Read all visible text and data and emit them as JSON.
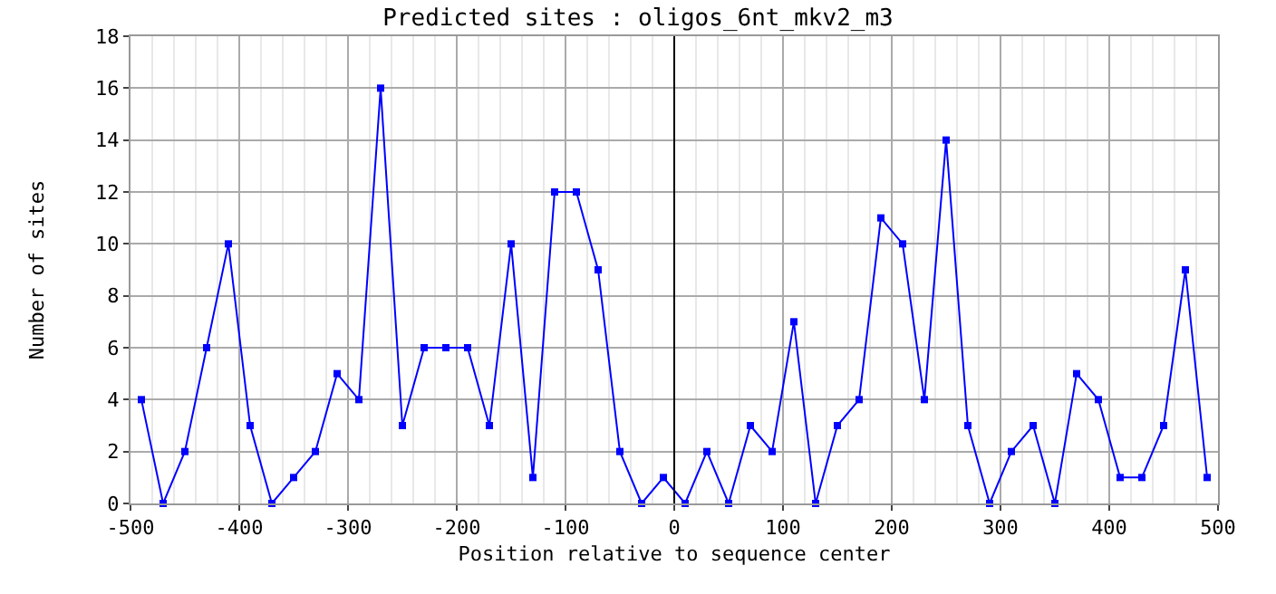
{
  "chart_data": {
    "type": "line",
    "title": "Predicted sites : oligos_6nt_mkv2_m3",
    "xlabel": "Position relative to sequence center",
    "ylabel": "Number of sites",
    "x": [
      -490,
      -470,
      -450,
      -430,
      -410,
      -390,
      -370,
      -350,
      -330,
      -310,
      -290,
      -270,
      -250,
      -230,
      -210,
      -190,
      -170,
      -150,
      -130,
      -110,
      -90,
      -70,
      -50,
      -30,
      -10,
      10,
      30,
      50,
      70,
      90,
      110,
      130,
      150,
      170,
      190,
      210,
      230,
      250,
      270,
      290,
      310,
      330,
      350,
      370,
      390,
      410,
      430,
      450,
      470,
      490
    ],
    "series": [
      {
        "color": "#0000ff",
        "values": [
          4,
          0,
          2,
          6,
          10,
          3,
          0,
          1,
          2,
          5,
          4,
          16,
          3,
          6,
          6,
          6,
          3,
          10,
          1,
          12,
          12,
          9,
          2,
          0,
          1,
          0,
          2,
          0,
          3,
          2,
          7,
          0,
          3,
          4,
          11,
          10,
          4,
          14,
          3,
          0,
          2,
          3,
          0,
          5,
          4,
          1,
          1,
          3,
          9,
          1
        ]
      }
    ],
    "xlim": [
      -500,
      500
    ],
    "xticks": [
      -500,
      -400,
      -300,
      -200,
      -100,
      0,
      100,
      200,
      300,
      400,
      500
    ],
    "ylim": [
      0,
      18
    ],
    "yticks": [
      0,
      2,
      4,
      6,
      8,
      10,
      12,
      14,
      16,
      18
    ],
    "grid": true,
    "marker": "square",
    "line_style": "solid",
    "legend": false,
    "ref_lines": [
      {
        "axis": "x",
        "value": 0,
        "color": "#000000"
      }
    ]
  }
}
